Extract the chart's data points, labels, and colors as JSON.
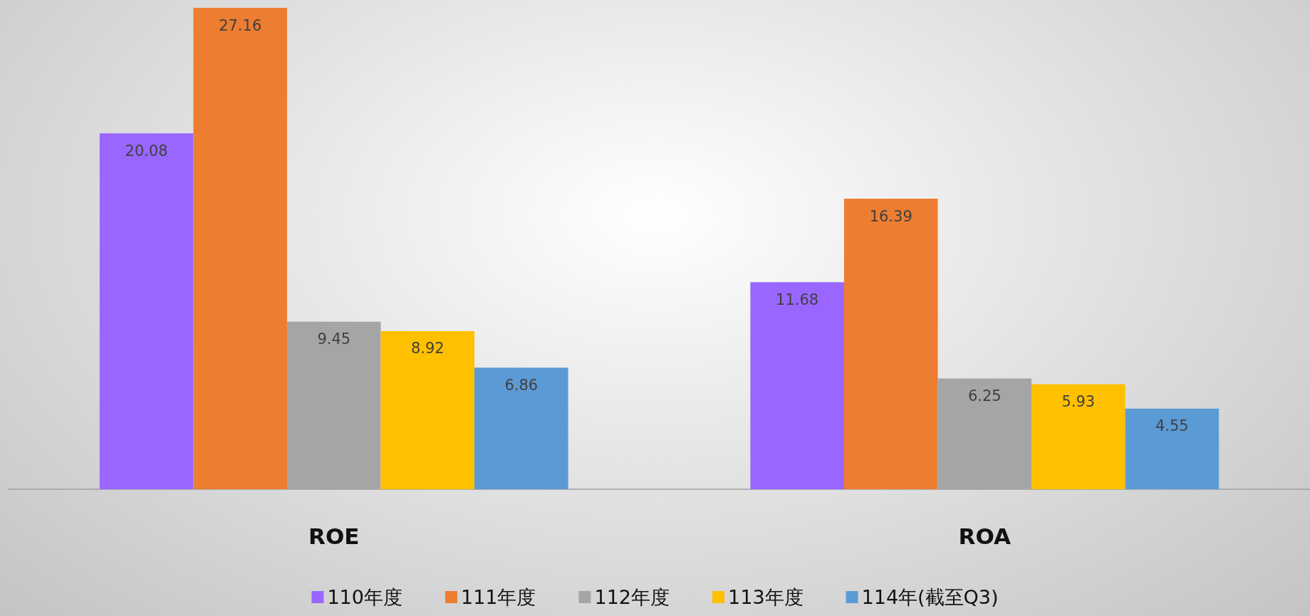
{
  "chart_data": {
    "type": "bar",
    "categories": [
      "ROE",
      "ROA"
    ],
    "series": [
      {
        "name": "110年度",
        "color": "#9966ff",
        "values": [
          20.08,
          11.68
        ]
      },
      {
        "name": "111年度",
        "color": "#ed7d31",
        "values": [
          27.16,
          16.39
        ]
      },
      {
        "name": "112年度",
        "color": "#a5a5a5",
        "values": [
          9.45,
          6.25
        ]
      },
      {
        "name": "113年度",
        "color": "#ffc000",
        "values": [
          8.92,
          5.93
        ]
      },
      {
        "name": "114年(截至Q3)",
        "color": "#5b9bd5",
        "values": [
          6.86,
          4.55
        ]
      }
    ],
    "data_labels": true,
    "grid": false,
    "legend": "bottom",
    "tick_labels": "x"
  }
}
